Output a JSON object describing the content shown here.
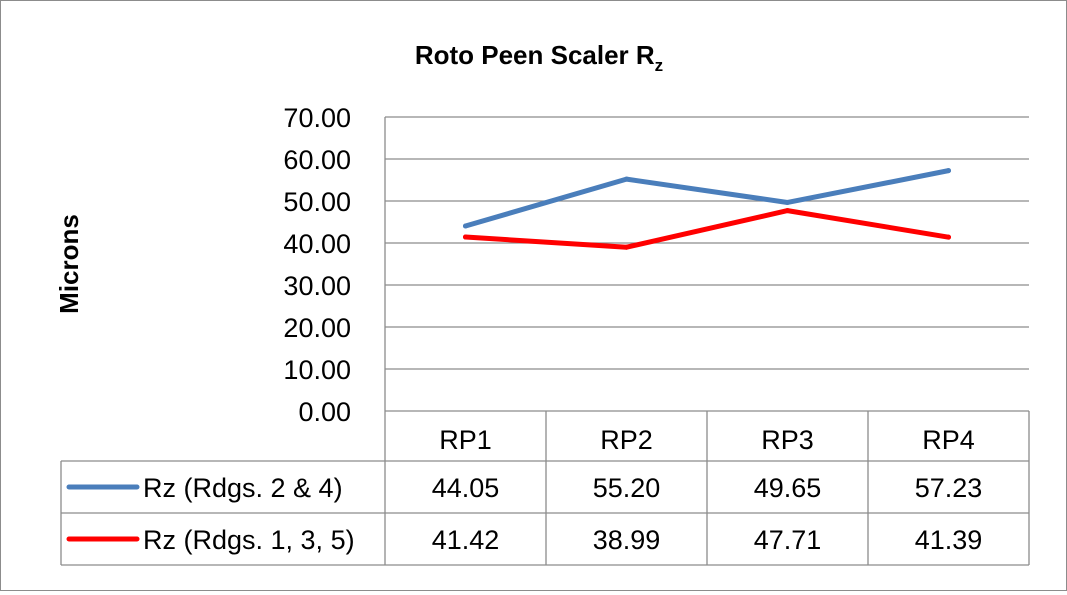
{
  "chart_data": {
    "type": "line",
    "title": "Roto Peen Scaler R",
    "title_subscript": "z",
    "ylabel": "Microns",
    "xlabel": "",
    "categories": [
      "RP1",
      "RP2",
      "RP3",
      "RP4"
    ],
    "ylim": [
      0,
      70
    ],
    "y_ticks": [
      "0.00",
      "10.00",
      "20.00",
      "30.00",
      "40.00",
      "50.00",
      "60.00",
      "70.00"
    ],
    "grid": true,
    "legend_placement": "data-table",
    "series": [
      {
        "name": "Rz (Rdgs. 2 & 4)",
        "color": "#4a7ebb",
        "values": [
          44.05,
          55.2,
          49.65,
          57.23
        ],
        "labels": [
          "44.05",
          "55.20",
          "49.65",
          "57.23"
        ]
      },
      {
        "name": "Rz (Rdgs. 1, 3, 5)",
        "color": "#ff0000",
        "values": [
          41.42,
          38.99,
          47.71,
          41.39
        ],
        "labels": [
          "41.42",
          "38.99",
          "47.71",
          "41.39"
        ]
      }
    ]
  }
}
